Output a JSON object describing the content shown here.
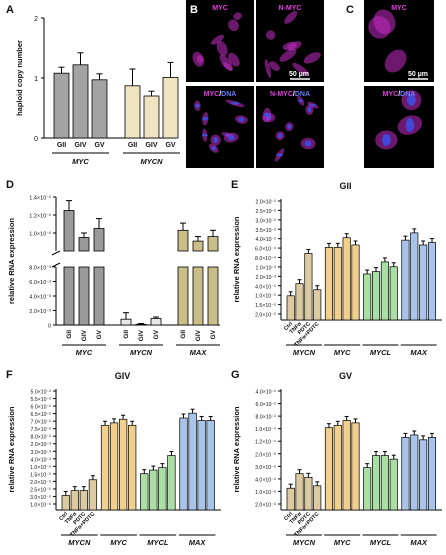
{
  "micro": {
    "B": {
      "letter": "B",
      "cells": [
        {
          "label": "MYC",
          "parts": [
            {
              "t": "MYC",
              "c": "#e23be2"
            }
          ]
        },
        {
          "label": "N-MYC",
          "parts": [
            {
              "t": "N-MYC",
              "c": "#e23be2"
            }
          ]
        },
        {
          "label": "MYC/DNA",
          "parts": [
            {
              "t": "MYC",
              "c": "#e23be2"
            },
            {
              "t": "/",
              "c": "#ffffff"
            },
            {
              "t": "DNA",
              "c": "#6a7bff"
            }
          ]
        },
        {
          "label": "N-MYC/DNA",
          "parts": [
            {
              "t": "N-MYC",
              "c": "#e23be2"
            },
            {
              "t": "/",
              "c": "#ffffff"
            },
            {
              "t": "DNA",
              "c": "#6a7bff"
            }
          ]
        }
      ],
      "scale": "50 µm"
    },
    "C": {
      "letter": "C",
      "cells": [
        {
          "label": "MYC",
          "parts": [
            {
              "t": "MYC",
              "c": "#e23be2"
            }
          ]
        },
        {
          "label": "MYC/DNA",
          "parts": [
            {
              "t": "MYC",
              "c": "#e23be2"
            },
            {
              "t": "/",
              "c": "#ffffff"
            },
            {
              "t": "DNA",
              "c": "#6a7bff"
            }
          ]
        }
      ],
      "scale": "50 µm"
    }
  },
  "chart_data": [
    {
      "panel": "A",
      "type": "bar",
      "ylabel": "haploid copy number",
      "ylim": [
        0,
        2
      ],
      "yticks": [
        "0",
        "1",
        "2"
      ],
      "categories": [
        "GII",
        "GIV",
        "GV",
        "GII",
        "GIV",
        "GV"
      ],
      "groups": [
        {
          "name": "MYC",
          "n": 3
        },
        {
          "name": "MYCN",
          "n": 3
        }
      ],
      "values": [
        1.08,
        1.22,
        0.97,
        0.87,
        0.7,
        1.01
      ],
      "errors": [
        0.1,
        0.2,
        0.1,
        0.28,
        0.08,
        0.25
      ],
      "colors": [
        "#a3a3a3",
        "#a3a3a3",
        "#a3a3a3",
        "#efe3c2",
        "#efe3c2",
        "#efe3c2"
      ]
    },
    {
      "panel": "D",
      "type": "bar",
      "ylabel": "relative RNA expression",
      "yticks": [
        "1.0×10⁻²",
        "8.0×10⁻³",
        "1.0×10⁻⁵",
        "2.0×10⁻³",
        "4.0×10⁻³",
        "6.0×10⁻³",
        "8.0×10⁻³",
        "1.0×10⁻²",
        "1.2×10⁻²",
        "1.4×10⁻²"
      ],
      "categories": [
        "GII",
        "GIV",
        "GV",
        "GII",
        "GIV",
        "GV",
        "GII",
        "GIV",
        "GV"
      ],
      "groups": [
        {
          "name": "MYC",
          "n": 3
        },
        {
          "name": "MYCN",
          "n": 3
        },
        {
          "name": "MAX",
          "n": 3
        }
      ],
      "values": [
        0.0125,
        0.0095,
        0.0105,
        0.0008,
        0.0001,
        0.0009,
        0.0103,
        0.0091,
        0.0096
      ],
      "errors": [
        0.0011,
        0.0005,
        0.0011,
        0.0009,
        0.0001,
        0.0002,
        0.0008,
        0.0005,
        0.0007
      ],
      "colors": [
        "#9a9a9a",
        "#9a9a9a",
        "#9a9a9a",
        "#e8e8e8",
        "#e8e8e8",
        "#e8e8e8",
        "#c9bd8a",
        "#c9bd8a",
        "#c9bd8a"
      ]
    },
    {
      "panel": "E",
      "type": "bar",
      "title": "GII",
      "ylabel": "relative RNA expression",
      "yticks": [
        "2.0×10⁻²",
        "2.5×10⁻²",
        "3.0×10⁻²",
        "3.5×10⁻²",
        "4.0×10⁻²",
        "6.0×10⁻⁴",
        "8.0×10⁻⁴",
        "1.0×10⁻³",
        "2.0×10⁻³",
        "4.0×10⁻⁵",
        "1.0×10⁻⁵",
        "1.5×10⁻⁵",
        "2.0×10⁻⁵"
      ],
      "treatments": [
        "Ctrl",
        "TNFα",
        "PDTC",
        "TNFα+PDTC"
      ],
      "groups": [
        {
          "name": "MYCN",
          "color": "#dccba0",
          "values": [
            0.2,
            0.3,
            0.55,
            0.25
          ]
        },
        {
          "name": "MYC",
          "color": "#f2cf8c",
          "values": [
            0.6,
            0.6,
            0.68,
            0.62
          ]
        },
        {
          "name": "MYCL",
          "color": "#a9dfa4",
          "values": [
            0.38,
            0.4,
            0.48,
            0.44
          ]
        },
        {
          "name": "MAX",
          "color": "#a9c4ea",
          "values": [
            0.66,
            0.72,
            0.62,
            0.64
          ]
        }
      ]
    },
    {
      "panel": "F",
      "type": "bar",
      "title": "GIV",
      "ylabel": "relative RNA expression",
      "yticks": [
        "5.0×10⁻²",
        "5.5×10⁻²",
        "6.0×10⁻²",
        "6.5×10⁻²",
        "7.0×10⁻²",
        "7.5×10⁻²",
        "8.0×10⁻²",
        "2.0×10⁻³",
        "3.0×10⁻³",
        "4.0×10⁻³",
        "1.0×10⁻⁵",
        "1.5×10⁻⁵",
        "2.0×10⁻⁵",
        "2.5×10⁻⁵",
        "3.0×10⁻⁵",
        "1.0×10⁻⁶"
      ],
      "treatments": [
        "Ctrl",
        "TNFα",
        "PDTC",
        "TNFα+PDTC"
      ],
      "groups": [
        {
          "name": "MYCN",
          "color": "#dccba0",
          "values": [
            0.12,
            0.16,
            0.16,
            0.25
          ]
        },
        {
          "name": "MYC",
          "color": "#f2cf8c",
          "values": [
            0.7,
            0.72,
            0.75,
            0.7
          ]
        },
        {
          "name": "MYCL",
          "color": "#a9dfa4",
          "values": [
            0.3,
            0.33,
            0.35,
            0.45
          ]
        },
        {
          "name": "MAX",
          "color": "#a9c4ea",
          "values": [
            0.76,
            0.8,
            0.74,
            0.74
          ]
        }
      ]
    },
    {
      "panel": "G",
      "type": "bar",
      "title": "GV",
      "ylabel": "relative RNA expression",
      "yticks": [
        "4.0×10⁻²",
        "6.0×10⁻²",
        "8.0×10⁻²",
        "1.0×10⁻⁴",
        "1.2×10⁻⁴",
        "2.0×10⁻⁶",
        "3.0×10⁻⁶",
        "4.0×10⁻⁶",
        "1.0×10⁻⁶",
        "2.0×10⁻⁶"
      ],
      "treatments": [
        "Ctrl",
        "TNFα",
        "PDTC",
        "TNFα+PDTC"
      ],
      "groups": [
        {
          "name": "MYCN",
          "color": "#dccba0",
          "values": [
            0.18,
            0.3,
            0.27,
            0.2
          ]
        },
        {
          "name": "MYC",
          "color": "#f2cf8c",
          "values": [
            0.68,
            0.7,
            0.74,
            0.72
          ]
        },
        {
          "name": "MYCL",
          "color": "#a9dfa4",
          "values": [
            0.35,
            0.45,
            0.45,
            0.42
          ]
        },
        {
          "name": "MAX",
          "color": "#a9c4ea",
          "values": [
            0.6,
            0.62,
            0.58,
            0.6
          ]
        }
      ]
    }
  ]
}
